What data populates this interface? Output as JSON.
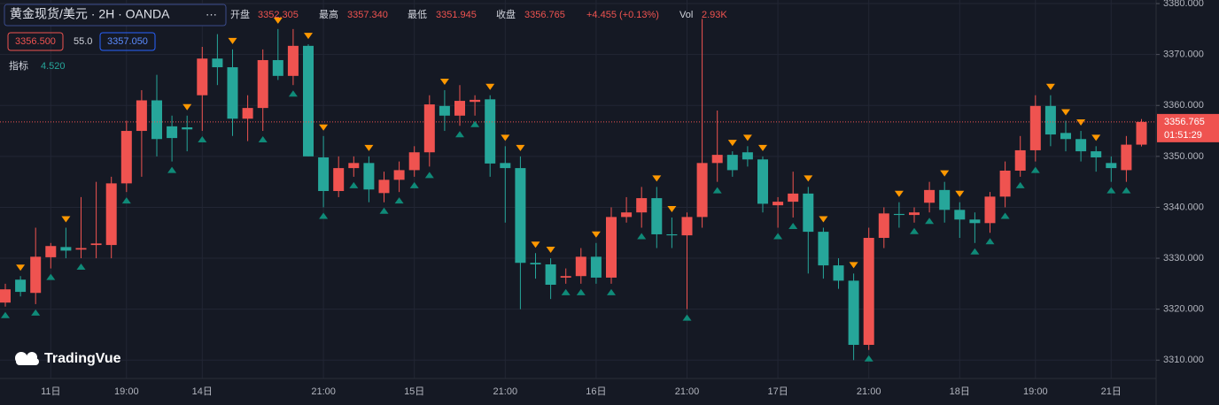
{
  "chart_data": {
    "type": "candlestick",
    "title": "黄金现货/美元 · 2H · OANDA",
    "more": "···",
    "legend": {
      "open_label": "开盘",
      "open": "3352.305",
      "high_label": "最高",
      "high": "3357.340",
      "low_label": "最低",
      "low": "3351.945",
      "close_label": "收盘",
      "close": "3356.765",
      "change": "+4.455 (+0.13%)",
      "vol_label": "Vol",
      "vol": "2.93K"
    },
    "quote": {
      "bid": "3356.500",
      "spread": "55.0",
      "ask": "3357.050"
    },
    "indicator": {
      "label": "指标",
      "value": "4.520"
    },
    "countdown": "01:51:29",
    "brand": "TradingVue",
    "up_color": "#ef5350",
    "down_color": "#26a69a",
    "grid": true,
    "categories": [
      null,
      null,
      null,
      "11日",
      null,
      null,
      null,
      null,
      "19:00",
      null,
      null,
      null,
      null,
      "14日",
      null,
      null,
      null,
      null,
      null,
      null,
      null,
      "21:00",
      null,
      null,
      null,
      null,
      null,
      "15日",
      null,
      null,
      null,
      null,
      null,
      "21:00",
      null,
      null,
      null,
      null,
      null,
      "16日",
      null,
      null,
      null,
      null,
      null,
      "21:00",
      null,
      null,
      null,
      null,
      null,
      "17日",
      null,
      null,
      null,
      null,
      null,
      "21:00",
      null,
      null,
      null,
      null,
      null,
      "18日",
      null,
      null,
      null,
      null,
      "19:00",
      null,
      null,
      null,
      null,
      "21日",
      null,
      null
    ],
    "open": [
      3321.3,
      3325.8,
      3323.2,
      3330.2,
      3332.2,
      3331.7,
      3332.6,
      3332.6,
      3344.7,
      3355,
      3361,
      3355.9,
      3355.7,
      3362,
      3369.2,
      3367.5,
      3357.4,
      3359.5,
      3368.9,
      3365.8,
      3371.7,
      3349.8,
      3343.2,
      3347.7,
      3348.7,
      3342.8,
      3345.4,
      3347.3,
      3350.8,
      3359.9,
      3358,
      3360.7,
      3361.2,
      3348.7,
      3347.7,
      3329.1,
      3328.8,
      3326.2,
      3326.5,
      3330.3,
      3326.2,
      3338.1,
      3339,
      3341.8,
      3334.7,
      3334.5,
      3338.1,
      3348.7,
      3350.3,
      3350.8,
      3349.4,
      3340.4,
      3341.1,
      3342.7,
      3335.2,
      3328.6,
      3325.6,
      3313,
      3334,
      3338.7,
      3338.5,
      3340.9,
      3343.4,
      3339.5,
      3337.6,
      3336.9,
      3342.1,
      3347.2,
      3351.2,
      3359.9,
      3354.6,
      3353.4,
      3351,
      3348.7,
      3347.3,
      3352.305
    ],
    "high": [
      3325,
      3326.5,
      3336,
      3333,
      3336,
      3342,
      3345,
      3346,
      3357,
      3363,
      3366,
      3358,
      3358,
      3371.5,
      3374,
      3371,
      3362,
      3371,
      3375,
      3375,
      3372,
      3354,
      3350,
      3350,
      3350,
      3347,
      3349,
      3352,
      3362,
      3363,
      3364,
      3362,
      3362,
      3352,
      3350,
      3331,
      3330,
      3328,
      3332,
      3333,
      3340,
      3342,
      3344,
      3344,
      3338,
      3339,
      3377,
      3359,
      3351,
      3352,
      3350,
      3342,
      3347,
      3344,
      3336,
      3330,
      3327,
      3336,
      3340,
      3341,
      3340,
      3345,
      3345,
      3341,
      3339,
      3343,
      3349,
      3354,
      3362,
      3362,
      3357,
      3355,
      3352,
      3350,
      3354,
      3357.34
    ],
    "low": [
      3320.5,
      3322.5,
      3321,
      3328,
      3330,
      3330,
      3330,
      3330,
      3343,
      3346,
      3350,
      3349,
      3351,
      3355,
      3364,
      3354,
      3353,
      3355,
      3365,
      3364,
      3350,
      3340,
      3342,
      3346,
      3341,
      3341,
      3343,
      3346,
      3348,
      3355,
      3356,
      3358,
      3346,
      3337,
      3320,
      3326,
      3322,
      3325,
      3325,
      3325,
      3325,
      3337,
      3336,
      3332,
      3332,
      3320,
      3336,
      3345,
      3346,
      3348,
      3339,
      3336,
      3338,
      3327,
      3326,
      3324,
      3310,
      3312,
      3332,
      3336,
      3337,
      3339,
      3337,
      3334,
      3333,
      3335,
      3340,
      3346,
      3349,
      3352,
      3351,
      3349,
      3347,
      3345,
      3345,
      3351.945
    ],
    "close": [
      3323.9,
      3323.4,
      3330.3,
      3332.4,
      3331.5,
      3332,
      3332.9,
      3344.7,
      3355,
      3361,
      3353.4,
      3353.6,
      3355.3,
      3369.2,
      3367.5,
      3357.4,
      3359.5,
      3368.9,
      3365.8,
      3371.7,
      3350,
      3343.2,
      3347.7,
      3348.7,
      3343.5,
      3345.4,
      3347.3,
      3350.8,
      3360.2,
      3358,
      3360.9,
      3361.1,
      3348.6,
      3347.7,
      3329.1,
      3328.8,
      3324.8,
      3326.5,
      3330.3,
      3326.2,
      3338.1,
      3339,
      3341.8,
      3334.7,
      3334.5,
      3338.1,
      3348.7,
      3350.3,
      3347.3,
      3349.4,
      3340.7,
      3341.1,
      3342.7,
      3335.2,
      3328.6,
      3325.6,
      3313,
      3334,
      3338.8,
      3338.5,
      3339,
      3343.4,
      3339.5,
      3337.6,
      3336.9,
      3342.1,
      3347.2,
      3351.2,
      3359.9,
      3354.3,
      3353.4,
      3351,
      3349.8,
      3347.7,
      3352.3,
      3356.765
    ],
    "sell_signals": [
      1,
      4,
      12,
      15,
      18,
      20,
      21,
      24,
      29,
      32,
      33,
      34,
      35,
      36,
      39,
      43,
      44,
      48,
      49,
      50,
      53,
      54,
      56,
      59,
      62,
      63,
      69,
      70,
      71,
      72
    ],
    "buy_signals": [
      0,
      2,
      3,
      5,
      8,
      11,
      13,
      17,
      19,
      21,
      23,
      25,
      26,
      27,
      28,
      30,
      31,
      37,
      38,
      40,
      42,
      45,
      47,
      51,
      52,
      57,
      60,
      61,
      64,
      65,
      66,
      67,
      68,
      73,
      74
    ],
    "signal_up_color": "#ff9800",
    "signal_dn_color": "#0f8a78",
    "ylim": [
      3306.4,
      3380.7
    ],
    "yticks": [
      {
        "value": 3310,
        "label": "3310.000"
      },
      {
        "value": 3320,
        "label": "3320.000"
      },
      {
        "value": 3330,
        "label": "3330.000"
      },
      {
        "value": 3340,
        "label": "3340.000"
      },
      {
        "value": 3350,
        "label": "3350.000"
      },
      {
        "value": 3360,
        "label": "3360.000"
      },
      {
        "value": 3370,
        "label": "3370.000"
      },
      {
        "value": 3380,
        "label": "3380.000"
      }
    ]
  }
}
